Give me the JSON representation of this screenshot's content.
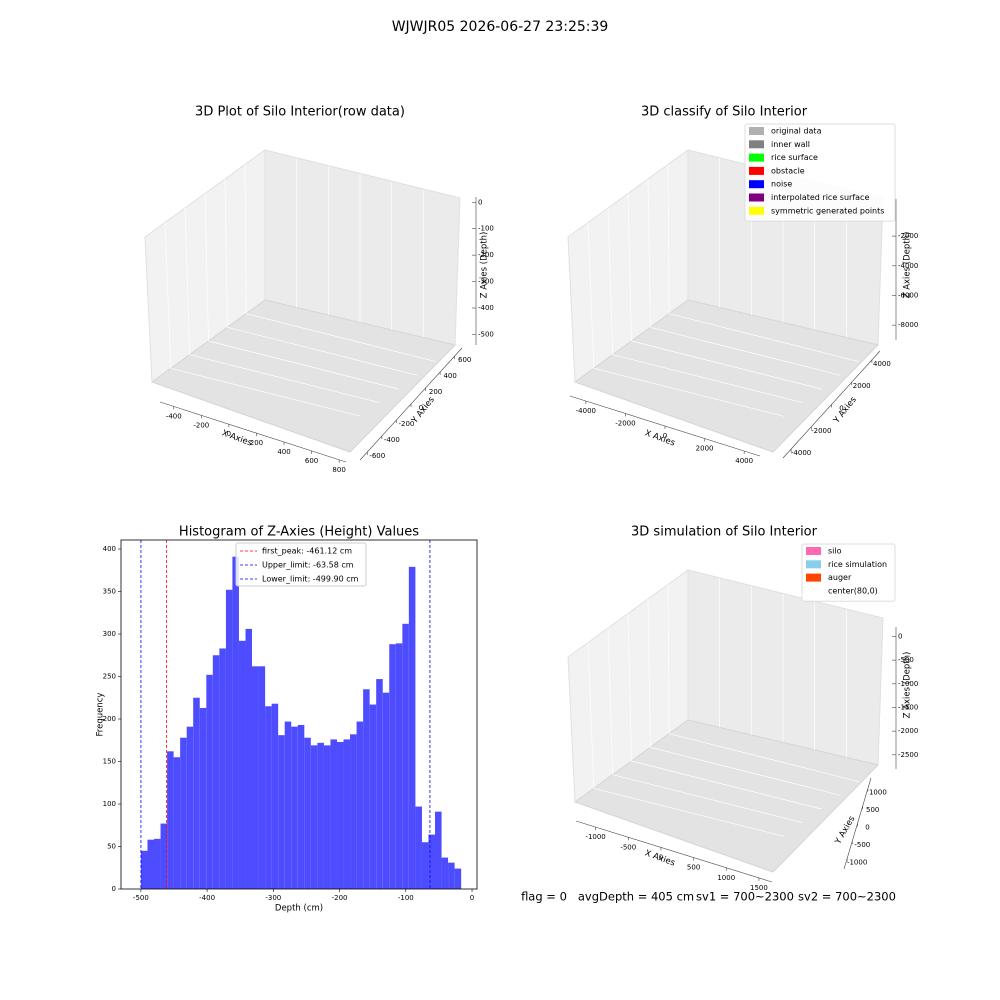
{
  "title": "WJWJR05 2026-06-27 23:25:39",
  "chart_data": [
    {
      "type": "scatter3d",
      "title": "3D Plot of Silo Interior(row data)",
      "xlabel": "X Axies",
      "ylabel": "Y Axies",
      "zlabel": "Z Axies (Depth)",
      "xlim": [
        -500,
        850
      ],
      "xticks": [
        -400,
        -200,
        0,
        200,
        400,
        600,
        800
      ],
      "ylim": [
        -700,
        700
      ],
      "yticks": [
        -600,
        -400,
        -200,
        0,
        200,
        400,
        600
      ],
      "zlim": [
        -540,
        20
      ],
      "zticks": [
        0,
        -100,
        -200,
        -300,
        -400,
        -500
      ]
    },
    {
      "type": "scatter3d",
      "title": "3D classify of Silo Interior",
      "xlabel": "X Axies",
      "ylabel": "Y Axies",
      "zlabel": "Z Axies (Depth)",
      "xlim": [
        -4800,
        4800
      ],
      "xticks": [
        -4000,
        -2000,
        0,
        2000,
        4000
      ],
      "ylim": [
        -4800,
        4800
      ],
      "yticks": [
        -4000,
        -2000,
        0,
        2000,
        4000
      ],
      "zlim": [
        -9000,
        500
      ],
      "zticks": [
        -2000,
        -4000,
        -6000,
        -8000
      ],
      "legend": [
        {
          "name": "original data",
          "color": "#b0b0b0"
        },
        {
          "name": "inner wall",
          "color": "#808080"
        },
        {
          "name": "rice surface",
          "color": "#00ff00"
        },
        {
          "name": "obstacle",
          "color": "#ff0000"
        },
        {
          "name": "noise",
          "color": "#0000ff"
        },
        {
          "name": "interpolated rice surface",
          "color": "#800080"
        },
        {
          "name": "symmetric generated points",
          "color": "#ffff00"
        }
      ]
    },
    {
      "type": "histogram",
      "title": "Histogram of Z-Axies (Height) Values",
      "xlabel": "Depth (cm)",
      "ylabel": "Frequency",
      "color": "#4d4dff",
      "bins": [
        -499.9,
        -490.0,
        -480.2,
        -470.3,
        -460.4,
        -450.6,
        -440.7,
        -430.8,
        -421.0,
        -411.1,
        -401.2,
        -391.4,
        -381.5,
        -371.6,
        -361.8,
        -351.9,
        -342.0,
        -332.2,
        -322.3,
        -312.4,
        -302.6,
        -292.7,
        -282.8,
        -273.0,
        -263.1,
        -253.2,
        -243.4,
        -233.5,
        -223.6,
        -213.8,
        -203.9,
        -194.0,
        -184.2,
        -174.3,
        -164.4,
        -154.6,
        -144.7,
        -134.8,
        -125.0,
        -115.1,
        -105.2,
        -95.4,
        -85.5,
        -75.6,
        -65.8,
        -55.9,
        -46.0,
        -36.2,
        -26.3,
        -16.4
      ],
      "values": [
        45,
        58,
        59,
        77,
        162,
        155,
        178,
        191,
        225,
        213,
        252,
        275,
        283,
        352,
        391,
        292,
        306,
        262,
        262,
        215,
        218,
        181,
        197,
        191,
        193,
        178,
        169,
        172,
        169,
        176,
        173,
        176,
        182,
        197,
        235,
        217,
        247,
        231,
        288,
        289,
        312,
        379,
        97,
        55,
        64,
        91,
        37,
        31,
        24
      ],
      "xlim": [
        -530,
        7.5
      ],
      "xticks": [
        -500,
        -400,
        -300,
        -200,
        -100,
        0
      ],
      "ylim": [
        0,
        410.6
      ],
      "yticks": [
        0,
        50,
        100,
        150,
        200,
        250,
        300,
        350,
        400
      ],
      "lines": [
        {
          "label": "first_peak: -461.12 cm",
          "value": -461.12,
          "color": "#ff0000"
        },
        {
          "label": "Upper_limit: -63.58 cm",
          "value": -63.58,
          "color": "#0000ff"
        },
        {
          "label": "Lower_limit: -499.90 cm",
          "value": -499.9,
          "color": "#0000ff"
        }
      ]
    },
    {
      "type": "surface3d",
      "title": "3D simulation of Silo Interior",
      "xlabel": "X Axies",
      "ylabel": "Y Axies",
      "zlabel": "Z Axies (Depth)",
      "xlim": [
        -1300,
        1700
      ],
      "xticks": [
        -1000,
        -500,
        0,
        500,
        1000,
        1500
      ],
      "ylim": [
        -1300,
        1300
      ],
      "yticks": [
        -1000,
        -500,
        0,
        500,
        1000
      ],
      "zlim": [
        -2800,
        200
      ],
      "zticks": [
        0,
        -500,
        -1000,
        -1500,
        -2000,
        -2500
      ],
      "legend": [
        {
          "name": "silo",
          "color": "#ff69b4"
        },
        {
          "name": "rice simulation",
          "color": "#87ceeb"
        },
        {
          "name": "auger",
          "color": "#ff4500"
        },
        {
          "name": "center(80,0)",
          "color": "#ffffff"
        }
      ]
    }
  ],
  "footer": [
    "flag = 0",
    "avgDepth = 405 cm",
    "sv1 = 700~2300",
    "sv2 = 700~2300"
  ]
}
